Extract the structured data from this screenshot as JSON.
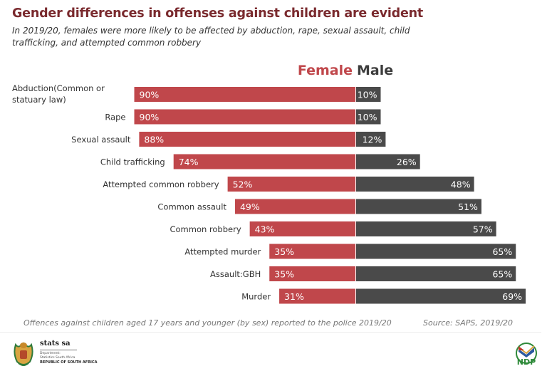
{
  "header": {
    "title": "Gender differences in offenses against children are evident",
    "subtitle": "In 2019/20, females were more likely to be affected by abduction, rape, sexual assault, child trafficking, and attempted common robbery"
  },
  "legend": {
    "female": "Female",
    "male": "Male"
  },
  "colors": {
    "female": "#c0474b",
    "male": "#4a4a4a",
    "title": "#7a2a2e"
  },
  "chart_data": {
    "type": "bar",
    "orientation": "horizontal-diverging",
    "title": "Gender differences in offenses against children are evident",
    "xlabel": "",
    "ylabel": "",
    "categories": [
      "Abduction(Common or statuary law)",
      "Rape",
      "Sexual assault",
      "Child trafficking",
      "Attempted common robbery",
      "Common assault",
      "Common robbery",
      "Attempted murder",
      "Assault:GBH",
      "Murder"
    ],
    "category_lines": [
      [
        "Abduction(Common or",
        "statuary law)"
      ],
      [
        "Rape"
      ],
      [
        "Sexual assault"
      ],
      [
        "Child trafficking"
      ],
      [
        "Attempted common robbery"
      ],
      [
        "Common assault"
      ],
      [
        "Common robbery"
      ],
      [
        "Attempted murder"
      ],
      [
        "Assault:GBH"
      ],
      [
        "Murder"
      ]
    ],
    "series": [
      {
        "name": "Female",
        "values": [
          90,
          90,
          88,
          74,
          52,
          49,
          43,
          35,
          35,
          31
        ]
      },
      {
        "name": "Male",
        "values": [
          10,
          10,
          12,
          26,
          48,
          51,
          57,
          65,
          65,
          69
        ]
      }
    ],
    "unit": "%",
    "legend": "top-center",
    "grid": false
  },
  "footer": {
    "note": "Offences against children aged 17 years and younger (by sex) reported to the police 2019/20",
    "source": "Source: SAPS, 2019/20",
    "logo_left": {
      "name": "stats sa",
      "line1": "Department:",
      "line2": "Statistics South Africa",
      "line3": "REPUBLIC OF SOUTH AFRICA"
    },
    "logo_right": {
      "text": "NDP"
    }
  }
}
